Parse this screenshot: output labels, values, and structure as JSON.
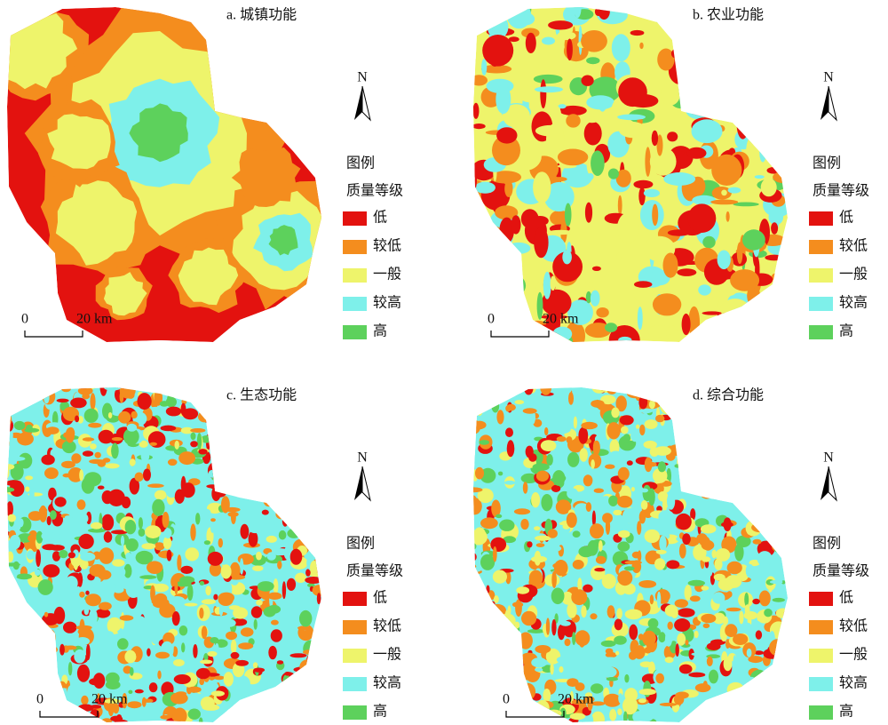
{
  "panels": [
    {
      "title": "a. 城镇功能",
      "north": "N",
      "legend_title": "图例",
      "legend_subtitle": "质量等级",
      "legend": [
        {
          "label": "低",
          "color": "#e3120f"
        },
        {
          "label": "较低",
          "color": "#f48d1e"
        },
        {
          "label": "一般",
          "color": "#eef46b"
        },
        {
          "label": "较高",
          "color": "#7ef0ea"
        },
        {
          "label": "高",
          "color": "#5dd15c"
        }
      ],
      "scale": [
        "0",
        "20 km"
      ]
    },
    {
      "title": "b. 农业功能",
      "north": "N",
      "legend_title": "图例",
      "legend_subtitle": "质量等级",
      "legend": [
        {
          "label": "低",
          "color": "#e3120f"
        },
        {
          "label": "较低",
          "color": "#f48d1e"
        },
        {
          "label": "一般",
          "color": "#eef46b"
        },
        {
          "label": "较高",
          "color": "#7ef0ea"
        },
        {
          "label": "高",
          "color": "#5dd15c"
        }
      ],
      "scale": [
        "0",
        "20 km"
      ]
    },
    {
      "title": "c. 生态功能",
      "north": "N",
      "legend_title": "图例",
      "legend_subtitle": "质量等级",
      "legend": [
        {
          "label": "低",
          "color": "#e3120f"
        },
        {
          "label": "较低",
          "color": "#f48d1e"
        },
        {
          "label": "一般",
          "color": "#eef46b"
        },
        {
          "label": "较高",
          "color": "#7ef0ea"
        },
        {
          "label": "高",
          "color": "#5dd15c"
        }
      ],
      "scale": [
        "0",
        "20 km"
      ]
    },
    {
      "title": "d. 综合功能",
      "north": "N",
      "legend_title": "图例",
      "legend_subtitle": "质量等级",
      "legend": [
        {
          "label": "低",
          "color": "#e3120f"
        },
        {
          "label": "较低",
          "color": "#f48d1e"
        },
        {
          "label": "一般",
          "color": "#eef46b"
        },
        {
          "label": "较高",
          "color": "#7ef0ea"
        },
        {
          "label": "高",
          "color": "#5dd15c"
        }
      ],
      "scale": [
        "0",
        "20 km"
      ]
    }
  ]
}
